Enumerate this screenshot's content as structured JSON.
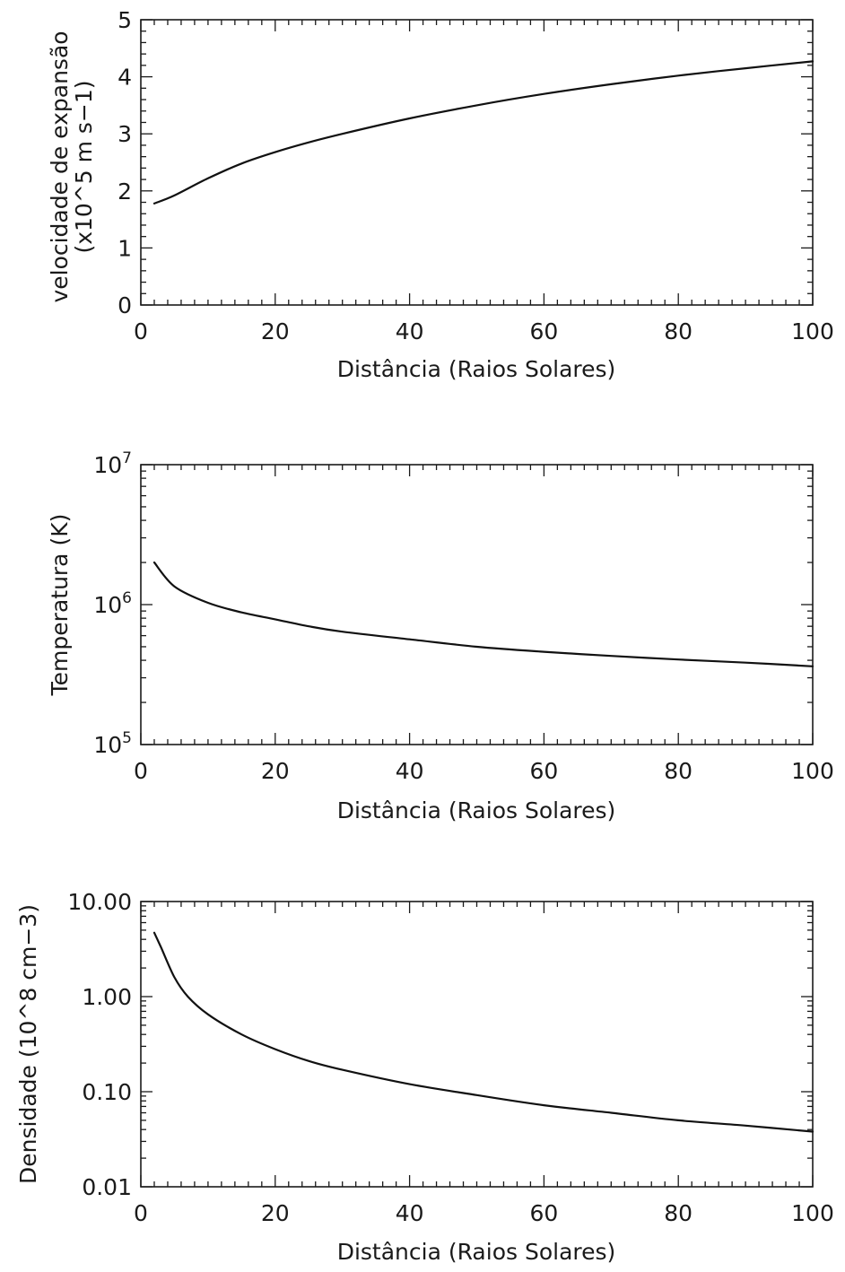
{
  "chart_data": [
    {
      "type": "line",
      "title": "",
      "xlabel": "Distância (Raios Solares)",
      "ylabel": "velocidade de expansão",
      "ylabel_line2": "(x10^5 m s−1)",
      "xlim": [
        0,
        100
      ],
      "ylim": [
        0,
        5
      ],
      "yscale": "linear",
      "x_ticks": [
        "0",
        "20",
        "40",
        "60",
        "80",
        "100"
      ],
      "y_ticks": [
        "0",
        "1",
        "2",
        "3",
        "4",
        "5"
      ],
      "grid": false,
      "series": [
        {
          "x": [
            2,
            5,
            10,
            15,
            20,
            25,
            30,
            40,
            50,
            60,
            70,
            80,
            90,
            100
          ],
          "y": [
            1.78,
            1.92,
            2.22,
            2.48,
            2.68,
            2.85,
            3.0,
            3.27,
            3.5,
            3.7,
            3.87,
            4.02,
            4.15,
            4.27
          ]
        }
      ]
    },
    {
      "type": "line",
      "title": "",
      "xlabel": "Distância (Raios Solares)",
      "ylabel": "Temperatura (K)",
      "xlim": [
        0,
        100
      ],
      "ylim": [
        100000,
        10000000
      ],
      "yscale": "log",
      "x_ticks": [
        "0",
        "20",
        "40",
        "60",
        "80",
        "100"
      ],
      "y_ticks": [
        {
          "base": "10",
          "exp": "5",
          "value": 100000
        },
        {
          "base": "10",
          "exp": "6",
          "value": 1000000
        },
        {
          "base": "10",
          "exp": "7",
          "value": 10000000
        }
      ],
      "grid": false,
      "series": [
        {
          "x": [
            2,
            5,
            10,
            15,
            20,
            25,
            30,
            40,
            50,
            60,
            70,
            80,
            90,
            100
          ],
          "y": [
            2000000,
            1350000,
            1030000,
            880000,
            785000,
            700000,
            640000,
            565000,
            500000,
            460000,
            430000,
            405000,
            385000,
            362000
          ]
        }
      ]
    },
    {
      "type": "line",
      "title": "",
      "xlabel": "Distância (Raios Solares)",
      "ylabel": "Densidade (10^8 cm−3)",
      "xlim": [
        0,
        100
      ],
      "ylim": [
        0.01,
        10
      ],
      "yscale": "log",
      "x_ticks": [
        "0",
        "20",
        "40",
        "60",
        "80",
        "100"
      ],
      "y_ticks": [
        {
          "label": "0.01",
          "value": 0.01
        },
        {
          "label": "0.10",
          "value": 0.1
        },
        {
          "label": "1.00",
          "value": 1
        },
        {
          "label": "10.00",
          "value": 10
        }
      ],
      "grid": false,
      "series": [
        {
          "x": [
            2,
            3,
            5,
            7,
            10,
            15,
            20,
            25,
            30,
            40,
            50,
            60,
            70,
            80,
            90,
            100
          ],
          "y": [
            4.7,
            3.3,
            1.6,
            1.0,
            0.65,
            0.4,
            0.28,
            0.21,
            0.17,
            0.12,
            0.092,
            0.072,
            0.06,
            0.05,
            0.044,
            0.038
          ]
        }
      ]
    }
  ]
}
